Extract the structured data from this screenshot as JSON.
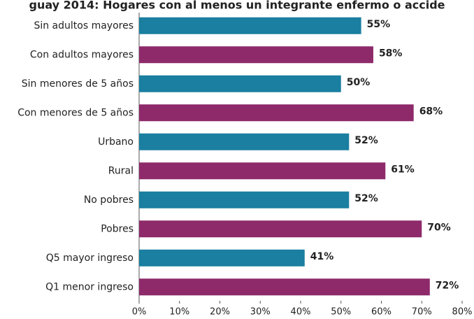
{
  "chart_data": {
    "type": "bar",
    "orientation": "horizontal",
    "title": "guay 2014: Hogares con al menos un integrante enfermo o accide",
    "categories": [
      "Sin adultos mayores",
      "Con adultos mayores",
      "Sin menores de 5 años",
      "Con menores de 5 años",
      "Urbano",
      "Rural",
      "No pobres",
      "Pobres",
      "Q5 mayor ingreso",
      "Q1 menor ingreso"
    ],
    "values": [
      55,
      58,
      50,
      68,
      52,
      61,
      52,
      70,
      41,
      72
    ],
    "value_labels": [
      "55%",
      "58%",
      "50%",
      "68%",
      "52%",
      "61%",
      "52%",
      "70%",
      "41%",
      "72%"
    ],
    "colors": [
      "#1a7fa0",
      "#8e2a6a",
      "#1a7fa0",
      "#8e2a6a",
      "#1a7fa0",
      "#8e2a6a",
      "#1a7fa0",
      "#8e2a6a",
      "#1a7fa0",
      "#8e2a6a"
    ],
    "xlim": [
      0,
      80
    ],
    "xticks": [
      {
        "value": 0,
        "label": "0%"
      },
      {
        "value": 10,
        "label": "10%"
      },
      {
        "value": 20,
        "label": "20%"
      },
      {
        "value": 30,
        "label": "30%"
      },
      {
        "value": 40,
        "label": "40%"
      },
      {
        "value": 50,
        "label": "50%"
      },
      {
        "value": 60,
        "label": "60%"
      },
      {
        "value": 70,
        "label": "70%"
      },
      {
        "value": 80,
        "label": "80%"
      }
    ],
    "grid": false
  }
}
